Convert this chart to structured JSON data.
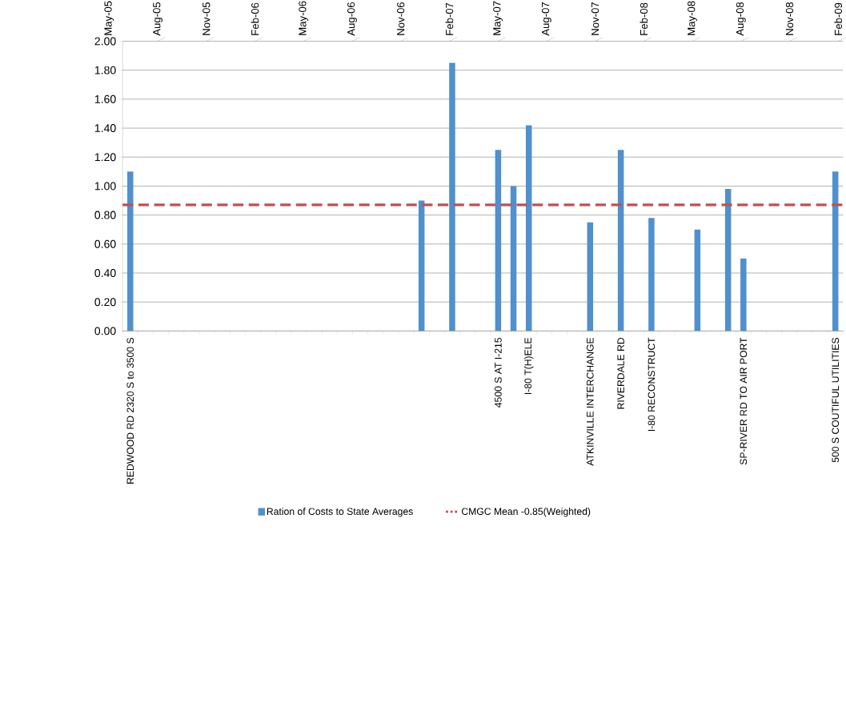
{
  "chart_data": {
    "type": "bar",
    "categories": [
      "REDWOOD RD 2320 S to 3500 S",
      null,
      null,
      null,
      null,
      null,
      null,
      null,
      null,
      null,
      null,
      null,
      null,
      null,
      null,
      null,
      null,
      null,
      null,
      null,
      null,
      null,
      null,
      null,
      "4500 S AT I-215",
      null,
      "I-80 T(H)ELE",
      null,
      null,
      null,
      "ATKINVILLE INTERCHANGE",
      null,
      "RIVERDALE RD",
      null,
      "I-80 RECONSTRUCT",
      null,
      null,
      null,
      null,
      null,
      "SP-RIVER RD TO AIR PORT",
      null,
      null,
      null,
      null,
      null,
      "500 S COUTIFUL UTILITIES"
    ],
    "series": [
      {
        "name": "Ration of Costs to State Averages",
        "color": "#4f90cd",
        "values": [
          1.1,
          null,
          null,
          null,
          null,
          null,
          null,
          null,
          null,
          null,
          null,
          null,
          null,
          null,
          null,
          null,
          null,
          null,
          null,
          0.9,
          null,
          1.85,
          null,
          null,
          1.25,
          1.0,
          1.42,
          null,
          null,
          null,
          0.75,
          null,
          1.25,
          null,
          0.78,
          null,
          null,
          0.7,
          null,
          0.98,
          0.5,
          null,
          null,
          null,
          null,
          null,
          1.1
        ]
      }
    ],
    "ylim": [
      0,
      2
    ],
    "yticks": [
      {
        "value": 0,
        "label": "0.00"
      },
      {
        "value": 0.2,
        "label": "0.20"
      },
      {
        "value": 0.4,
        "label": "0.40"
      },
      {
        "value": 0.6,
        "label": "0.60"
      },
      {
        "value": 0.8,
        "label": "0.80"
      },
      {
        "value": 1.0,
        "label": "1.00"
      },
      {
        "value": 1.2,
        "label": "1.20"
      },
      {
        "value": 1.4,
        "label": "1.40"
      },
      {
        "value": 1.6,
        "label": "1.60"
      },
      {
        "value": 1.8,
        "label": "1.80"
      },
      {
        "value": 2.0,
        "label": "2.00"
      }
    ],
    "x2lim": [
      "2005-05",
      "2009-02-10"
    ],
    "x2ticks": [
      {
        "value": "2005-05",
        "label": "May-05"
      },
      {
        "value": "2005-08",
        "label": "Aug-05"
      },
      {
        "value": "2005-11",
        "label": "Nov-05"
      },
      {
        "value": "2006-02",
        "label": "Feb-06"
      },
      {
        "value": "2006-05",
        "label": "May-06"
      },
      {
        "value": "2006-08",
        "label": "Aug-06"
      },
      {
        "value": "2006-11",
        "label": "Nov-06"
      },
      {
        "value": "2007-02",
        "label": "Feb-07"
      },
      {
        "value": "2007-05",
        "label": "May-07"
      },
      {
        "value": "2007-08",
        "label": "Aug-07"
      },
      {
        "value": "2007-11",
        "label": "Nov-07"
      },
      {
        "value": "2008-02",
        "label": "Feb-08"
      },
      {
        "value": "2008-05",
        "label": "May-08"
      },
      {
        "value": "2008-08",
        "label": "Aug-08"
      },
      {
        "value": "2008-11",
        "label": "Nov-08"
      },
      {
        "value": "2009-02",
        "label": "Feb-09"
      }
    ],
    "grid": "y",
    "legend": "bottom",
    "ref_lines": [
      {
        "axis": "y",
        "value": 0.87,
        "label": "CMGC Mean -0.85(Weighted)",
        "color": "#c0504d",
        "line_style": "dashed"
      }
    ]
  }
}
